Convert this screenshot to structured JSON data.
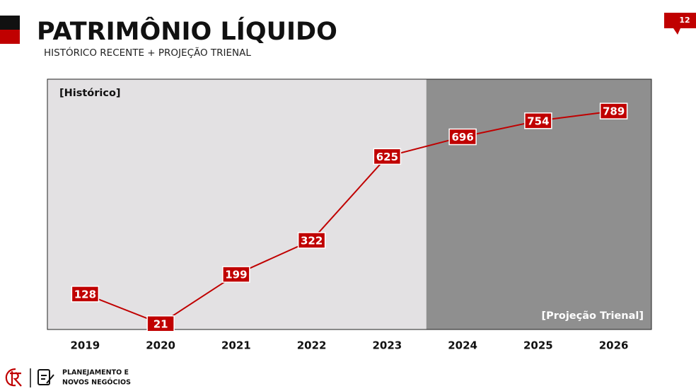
{
  "page_number": "12",
  "chart_data": {
    "type": "line",
    "title": "PATRIMÔNIO LÍQUIDO",
    "subtitle": "HISTÓRICO RECENTE + PROJEÇÃO TRIENAL",
    "categories": [
      "2019",
      "2020",
      "2021",
      "2022",
      "2023",
      "2024",
      "2025",
      "2026"
    ],
    "series": [
      {
        "color": "#c00000",
        "values": [
          128,
          21,
          199,
          322,
          625,
          696,
          754,
          789
        ]
      }
    ],
    "regions": [
      {
        "label": "[Histórico]",
        "from": "2019",
        "to": "2023",
        "color": "#e3e1e3",
        "label_color": "#111"
      },
      {
        "label": "[Projeção Trienal]",
        "from": "2024",
        "to": "2026",
        "color": "#8f8f8f",
        "label_color": "#fff"
      }
    ]
  },
  "footer": {
    "lines": [
      "PLANEJAMENTO E",
      "NOVOS NEGÓCIOS"
    ]
  }
}
